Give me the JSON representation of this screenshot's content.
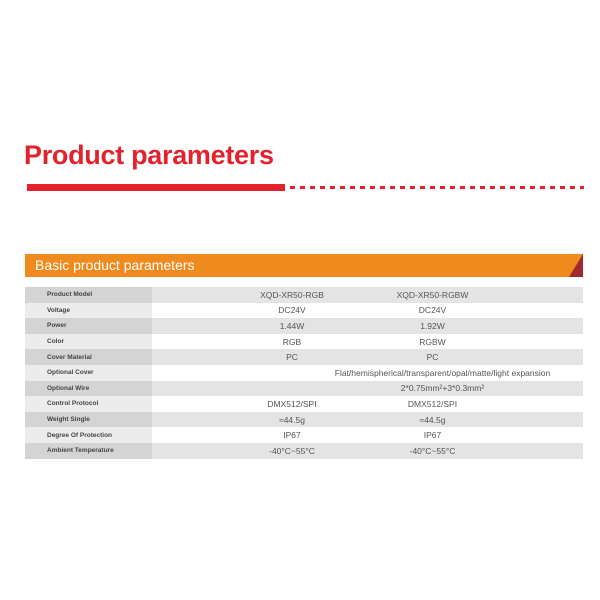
{
  "title": "Product parameters",
  "section_title": "Basic product parameters",
  "colors": {
    "accent_red": "#e3222d",
    "section_orange": "#ef8a1f",
    "corner": "#9e2a2f"
  },
  "rows": [
    {
      "label": "Product Model",
      "v1": "XQD-XR50-RGB",
      "v2": "XQD-XR50-RGBW"
    },
    {
      "label": "Voltage",
      "v1": "DC24V",
      "v2": "DC24V"
    },
    {
      "label": "Power",
      "v1": "1.44W",
      "v2": "1.92W"
    },
    {
      "label": "Color",
      "v1": "RGB",
      "v2": "RGBW"
    },
    {
      "label": "Cover Material",
      "v1": "PC",
      "v2": "PC"
    },
    {
      "label": "Optional Cover",
      "span": "Flat/hemispherical/transparent/opal/matte/light expansion"
    },
    {
      "label": "Optional Wire",
      "span": "2*0.75mm²+3*0.3mm²"
    },
    {
      "label": "Control Protocol",
      "v1": "DMX512/SPI",
      "v2": "DMX512/SPI"
    },
    {
      "label": "Weight Single",
      "v1": "≈44.5g",
      "v2": "≈44.5g"
    },
    {
      "label": "Degree Of Protection",
      "v1": "IP67",
      "v2": "IP67"
    },
    {
      "label": "Ambient Temperature",
      "v1": "-40°C~55°C",
      "v2": "-40°C~55°C"
    }
  ]
}
